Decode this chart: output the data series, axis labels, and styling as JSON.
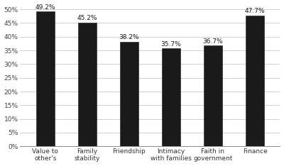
{
  "categories": [
    "Value to\nother's",
    "Family\nstability",
    "Friendship",
    "Intimacy\nwith families",
    "Faith in\ngovernment",
    "Finance"
  ],
  "values": [
    49.2,
    45.2,
    38.2,
    35.7,
    36.7,
    47.7
  ],
  "bar_color": "#1a1a1a",
  "bar_edge_color": "#1a1a1a",
  "ylim": [
    0,
    50
  ],
  "yticks": [
    0,
    5,
    10,
    15,
    20,
    25,
    30,
    35,
    40,
    45,
    50
  ],
  "ytick_labels": [
    "0%",
    "5%",
    "10%",
    "15%",
    "20%",
    "25%",
    "30%",
    "35%",
    "40%",
    "45%",
    "50%"
  ],
  "label_fontsize": 6.5,
  "tick_fontsize": 6.5,
  "value_fontsize": 6.5,
  "background_color": "#ffffff",
  "grid_color": "#c8c8c8",
  "bar_width": 0.45
}
